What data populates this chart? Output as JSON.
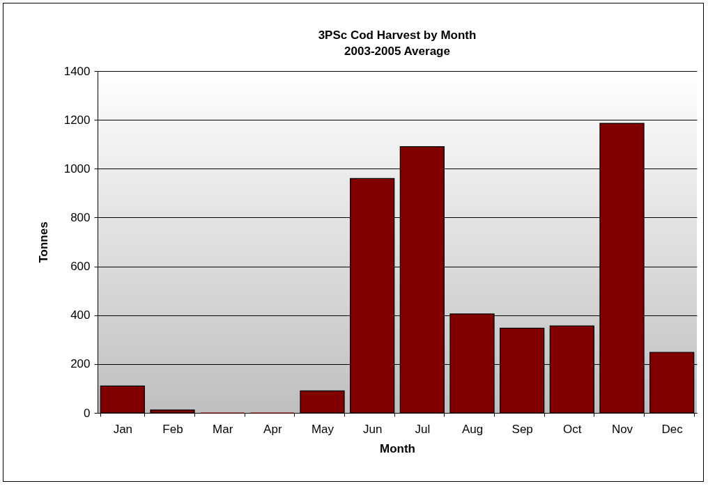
{
  "chart_data": {
    "type": "bar",
    "title": "3PSc Cod Harvest by Month",
    "subtitle": "2003-2005 Average",
    "xlabel": "Month",
    "ylabel": "Tonnes",
    "categories": [
      "Jan",
      "Feb",
      "Mar",
      "Apr",
      "May",
      "Jun",
      "Jul",
      "Aug",
      "Sep",
      "Oct",
      "Nov",
      "Dec"
    ],
    "values": [
      110,
      12,
      0,
      0,
      90,
      960,
      1090,
      405,
      347,
      356,
      1186,
      248
    ],
    "color": "#800000",
    "ylim": [
      0,
      1400
    ],
    "yticks": [
      0,
      200,
      400,
      600,
      800,
      1000,
      1200,
      1400
    ],
    "grid": "y"
  }
}
